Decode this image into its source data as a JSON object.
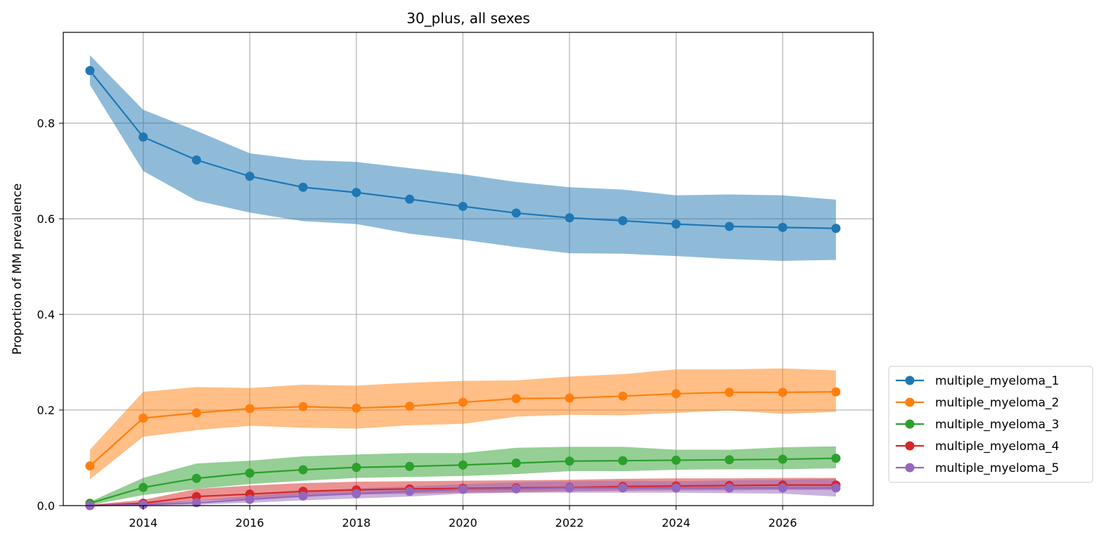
{
  "chart_data": {
    "type": "line",
    "title": "30_plus, all sexes",
    "xlabel": "",
    "ylabel": "Proportion of MM prevalence",
    "xlim": [
      2012.5,
      2027.7
    ],
    "ylim": [
      0.0,
      0.99
    ],
    "xticks": [
      2014,
      2016,
      2018,
      2020,
      2022,
      2024,
      2026
    ],
    "xtick_labels": [
      "2014",
      "2016",
      "2018",
      "2020",
      "2022",
      "2024",
      "2026"
    ],
    "yticks": [
      0.0,
      0.2,
      0.4,
      0.6,
      0.8
    ],
    "ytick_labels": [
      "0.0",
      "0.2",
      "0.4",
      "0.6",
      "0.8"
    ],
    "grid": true,
    "legend_position": "lower-right outside",
    "x": [
      2013,
      2014,
      2015,
      2016,
      2017,
      2018,
      2019,
      2020,
      2021,
      2022,
      2023,
      2024,
      2025,
      2026,
      2027
    ],
    "series": [
      {
        "name": "multiple_myeloma_1",
        "color": "#1f77b4",
        "values": [
          0.91,
          0.771,
          0.723,
          0.689,
          0.666,
          0.655,
          0.641,
          0.626,
          0.612,
          0.602,
          0.596,
          0.589,
          0.584,
          0.582,
          0.58
        ],
        "lower": [
          0.88,
          0.7,
          0.638,
          0.613,
          0.595,
          0.589,
          0.569,
          0.556,
          0.541,
          0.528,
          0.527,
          0.522,
          0.516,
          0.512,
          0.514
        ],
        "upper": [
          0.942,
          0.828,
          0.784,
          0.737,
          0.723,
          0.719,
          0.706,
          0.693,
          0.677,
          0.666,
          0.661,
          0.649,
          0.651,
          0.649,
          0.64
        ]
      },
      {
        "name": "multiple_myeloma_2",
        "color": "#ff7f0e",
        "values": [
          0.083,
          0.183,
          0.194,
          0.203,
          0.207,
          0.204,
          0.208,
          0.216,
          0.224,
          0.225,
          0.229,
          0.234,
          0.237,
          0.237,
          0.238
        ],
        "lower": [
          0.055,
          0.144,
          0.158,
          0.167,
          0.163,
          0.161,
          0.168,
          0.171,
          0.186,
          0.19,
          0.189,
          0.194,
          0.199,
          0.192,
          0.196
        ],
        "upper": [
          0.117,
          0.238,
          0.248,
          0.246,
          0.253,
          0.251,
          0.257,
          0.261,
          0.262,
          0.27,
          0.275,
          0.285,
          0.285,
          0.287,
          0.283
        ]
      },
      {
        "name": "multiple_myeloma_3",
        "color": "#2ca02c",
        "values": [
          0.005,
          0.038,
          0.057,
          0.068,
          0.075,
          0.08,
          0.082,
          0.085,
          0.089,
          0.093,
          0.094,
          0.095,
          0.096,
          0.097,
          0.099
        ],
        "lower": [
          0.001,
          0.022,
          0.035,
          0.045,
          0.052,
          0.058,
          0.06,
          0.062,
          0.066,
          0.072,
          0.072,
          0.075,
          0.076,
          0.076,
          0.078
        ],
        "upper": [
          0.008,
          0.058,
          0.088,
          0.094,
          0.103,
          0.107,
          0.11,
          0.11,
          0.121,
          0.123,
          0.123,
          0.117,
          0.117,
          0.122,
          0.124
        ]
      },
      {
        "name": "multiple_myeloma_4",
        "color": "#d62728",
        "values": [
          0.0,
          0.005,
          0.019,
          0.024,
          0.03,
          0.033,
          0.035,
          0.036,
          0.037,
          0.038,
          0.04,
          0.041,
          0.042,
          0.043,
          0.043
        ],
        "lower": [
          0.0,
          0.001,
          0.01,
          0.014,
          0.02,
          0.023,
          0.025,
          0.027,
          0.028,
          0.03,
          0.031,
          0.032,
          0.032,
          0.033,
          0.033
        ],
        "upper": [
          0.002,
          0.012,
          0.035,
          0.042,
          0.047,
          0.05,
          0.051,
          0.052,
          0.053,
          0.054,
          0.056,
          0.057,
          0.057,
          0.058,
          0.058
        ]
      },
      {
        "name": "multiple_myeloma_5",
        "color": "#9467bd",
        "values": [
          0.0,
          0.002,
          0.006,
          0.013,
          0.02,
          0.025,
          0.03,
          0.034,
          0.035,
          0.037,
          0.037,
          0.037,
          0.037,
          0.037,
          0.037
        ],
        "lower": [
          0.0,
          0.0,
          0.002,
          0.006,
          0.011,
          0.015,
          0.019,
          0.025,
          0.027,
          0.027,
          0.027,
          0.027,
          0.026,
          0.025,
          0.019
        ],
        "upper": [
          0.001,
          0.005,
          0.011,
          0.02,
          0.03,
          0.036,
          0.04,
          0.045,
          0.049,
          0.051,
          0.052,
          0.051,
          0.053,
          0.054,
          0.056
        ]
      }
    ]
  }
}
